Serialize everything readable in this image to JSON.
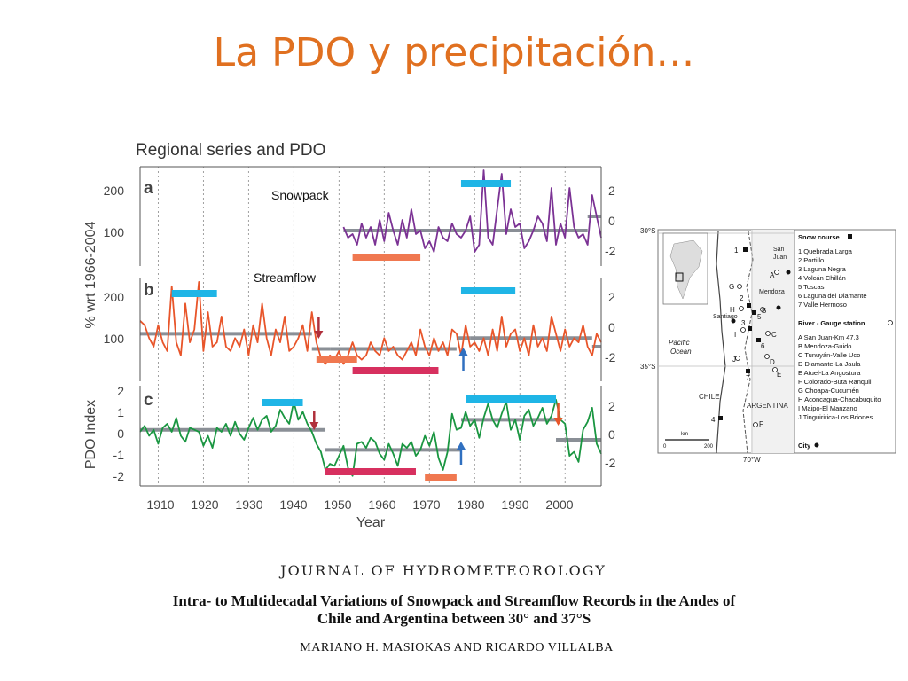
{
  "slide": {
    "title": "La PDO y precipitación…",
    "title_color": "#e07020"
  },
  "figure": {
    "heading": "Regional series and PDO",
    "panel_letters": [
      "a",
      "b",
      "c"
    ],
    "left_axis_title_top": "% wrt 1966-2004",
    "left_axis_title_bottom": "PDO Index",
    "left_ticks_a": [
      "200",
      "100"
    ],
    "left_ticks_b": [
      "200",
      "100"
    ],
    "left_ticks_c": [
      "2",
      "1",
      "0",
      "-1",
      "-2"
    ],
    "right_ticks": [
      "2",
      "0",
      "-2"
    ],
    "annotation_snowpack": "Snowpack",
    "annotation_streamflow": "Streamflow",
    "x_label": "Year",
    "x_ticks": [
      "1910",
      "1920",
      "1930",
      "1940",
      "1950",
      "1960",
      "1970",
      "1980",
      "1990",
      "2000"
    ],
    "colors": {
      "snowpack": "#7b3294",
      "streamflow": "#e8552a",
      "pdo": "#1a9641",
      "mean": "#8a8f96",
      "positive_bar": "#1fb5e6",
      "negative_bar": "#d7305f",
      "negative_bar_light": "#f07850",
      "arrow_down": "#b0303c",
      "arrow_up": "#3070c0"
    }
  },
  "chart_data": [
    {
      "type": "line",
      "panel": "a",
      "series": [
        {
          "name": "Snowpack",
          "x_start": 1951,
          "x_end": 2008,
          "values": [
            90,
            60,
            70,
            40,
            100,
            60,
            90,
            40,
            110,
            50,
            130,
            80,
            40,
            110,
            60,
            140,
            70,
            80,
            30,
            50,
            20,
            90,
            60,
            50,
            100,
            70,
            60,
            80,
            120,
            20,
            40,
            250,
            60,
            40,
            140,
            240,
            70,
            140,
            90,
            100,
            30,
            50,
            80,
            120,
            100,
            50,
            200,
            40,
            100,
            60,
            200,
            90,
            60,
            70,
            40,
            180,
            120,
            60
          ]
        }
      ],
      "mean_periods": [
        {
          "x": [
            1951,
            2005
          ],
          "y": 80
        },
        {
          "x": [
            2005,
            2008
          ],
          "y": 120
        }
      ],
      "ylim": [
        -20,
        260
      ]
    },
    {
      "type": "line",
      "panel": "b",
      "series": [
        {
          "name": "Streamflow",
          "x_start": 1906,
          "x_end": 2008,
          "values": [
            140,
            130,
            100,
            80,
            130,
            90,
            70,
            220,
            90,
            60,
            180,
            90,
            120,
            230,
            70,
            160,
            80,
            90,
            150,
            80,
            70,
            100,
            80,
            120,
            60,
            130,
            90,
            180,
            100,
            60,
            120,
            90,
            150,
            70,
            80,
            100,
            130,
            70,
            160,
            90,
            55,
            40,
            60,
            50,
            70,
            40,
            60,
            90,
            60,
            50,
            60,
            90,
            70,
            60,
            100,
            70,
            80,
            60,
            50,
            70,
            90,
            60,
            120,
            80,
            60,
            100,
            70,
            90,
            60,
            120,
            110,
            60,
            130,
            80,
            90,
            70,
            100,
            60,
            120,
            70,
            150,
            80,
            110,
            120,
            70,
            100,
            60,
            130,
            80,
            100,
            70,
            150,
            110,
            70,
            120,
            80,
            100,
            90,
            130,
            80,
            60,
            110,
            90
          ]
        }
      ],
      "mean_periods": [
        {
          "x": [
            1906,
            1944
          ],
          "y": 110
        },
        {
          "x": [
            1944,
            1948
          ],
          "y": 75
        },
        {
          "x": [
            1948,
            1976
          ],
          "y": 75
        },
        {
          "x": [
            1976,
            1979
          ],
          "y": 100
        },
        {
          "x": [
            1979,
            2006
          ],
          "y": 100
        },
        {
          "x": [
            2006,
            2008
          ],
          "y": 80
        }
      ],
      "ylim": [
        0,
        240
      ]
    },
    {
      "type": "line",
      "panel": "c",
      "series": [
        {
          "name": "PDO Index",
          "x_start": 1906,
          "x_end": 2008,
          "values": [
            0.2,
            0.5,
            0.0,
            0.3,
            -0.4,
            0.4,
            0.6,
            0.2,
            0.9,
            0.0,
            -0.3,
            0.4,
            0.3,
            0.2,
            -0.5,
            0.0,
            -0.6,
            0.4,
            0.2,
            0.6,
            0.0,
            0.7,
            0.1,
            -0.2,
            0.4,
            0.9,
            0.3,
            0.8,
            1.0,
            0.2,
            0.5,
            1.3,
            0.9,
            0.6,
            1.7,
            0.8,
            1.2,
            0.6,
            0.2,
            -0.4,
            -0.8,
            -1.7,
            -1.4,
            -1.5,
            -1.0,
            -0.5,
            -1.6,
            -2.0,
            -0.4,
            -0.3,
            -0.6,
            -0.1,
            -0.3,
            -0.9,
            -1.2,
            -0.4,
            -0.9,
            -1.5,
            -0.4,
            -0.6,
            -0.3,
            -1.0,
            -0.7,
            0.0,
            -0.5,
            0.2,
            -1.1,
            -1.7,
            -0.8,
            1.1,
            0.3,
            0.4,
            1.2,
            0.5,
            0.8,
            -0.1,
            0.9,
            1.6,
            0.8,
            0.4,
            1.1,
            1.7,
            0.3,
            0.8,
            -0.2,
            1.0,
            1.3,
            0.5,
            0.9,
            1.4,
            0.6,
            1.0,
            1.8,
            0.8,
            0.6,
            -1.0,
            -0.8,
            -1.3,
            0.3,
            0.7,
            1.4,
            -0.4,
            -0.9
          ]
        }
      ],
      "mean_periods": [
        {
          "x": [
            1906,
            1947
          ],
          "y": 0.3
        },
        {
          "x": [
            1947,
            1977
          ],
          "y": -0.7
        },
        {
          "x": [
            1977,
            1998
          ],
          "y": 0.8
        },
        {
          "x": [
            1998,
            2008
          ],
          "y": -0.2
        }
      ],
      "ylim": [
        -2.5,
        2.5
      ]
    }
  ],
  "map": {
    "lat_labels": [
      "30°S",
      "35°S"
    ],
    "lon_label": "70°W",
    "ocean_label": "Pacific Ocean",
    "country_labels": [
      "CHILE",
      "ARGENTINA"
    ],
    "city_labels": [
      "San Juan",
      "Mendoza",
      "Santiago"
    ],
    "scale_label": "km",
    "scale_ticks": [
      "0",
      "200"
    ],
    "snow_header": "Snow course",
    "snow_courses": [
      "1  Quebrada Larga",
      "2  Portillo",
      "3  Laguna Negra",
      "4  Volcán Chillán",
      "5  Toscas",
      "6  Laguna del Diamante",
      "7  Valle Hermoso"
    ],
    "river_header": "River - Gauge station",
    "rivers": [
      "A  San Juan-Km 47.3",
      "B  Mendoza-Guido",
      "C  Tunuyán-Valle Uco",
      "D  Diamante-La Jaula",
      "E  Atuel-La Angostura",
      "F  Colorado-Buta Ranquil",
      "G  Choapa-Cucumén",
      "H  Aconcagua-Chacabuquito",
      "I  Maipo-El Manzano",
      "J  Tinguiririca-Los Briones"
    ],
    "city_header": "City",
    "markers": [
      "1",
      "2",
      "3",
      "4",
      "5",
      "6",
      "7",
      "A",
      "B",
      "C",
      "D",
      "E",
      "F",
      "G",
      "H",
      "I",
      "J"
    ]
  },
  "citation": {
    "journal": "JOURNAL OF HYDROMETEOROLOGY",
    "title_line1": "Intra- to Multidecadal Variations of Snowpack and Streamflow Records in the Andes of",
    "title_line2": "Chile and Argentina between 30° and 37°S",
    "authors": "MARIANO H. MASIOKAS AND RICARDO VILLALBA"
  }
}
